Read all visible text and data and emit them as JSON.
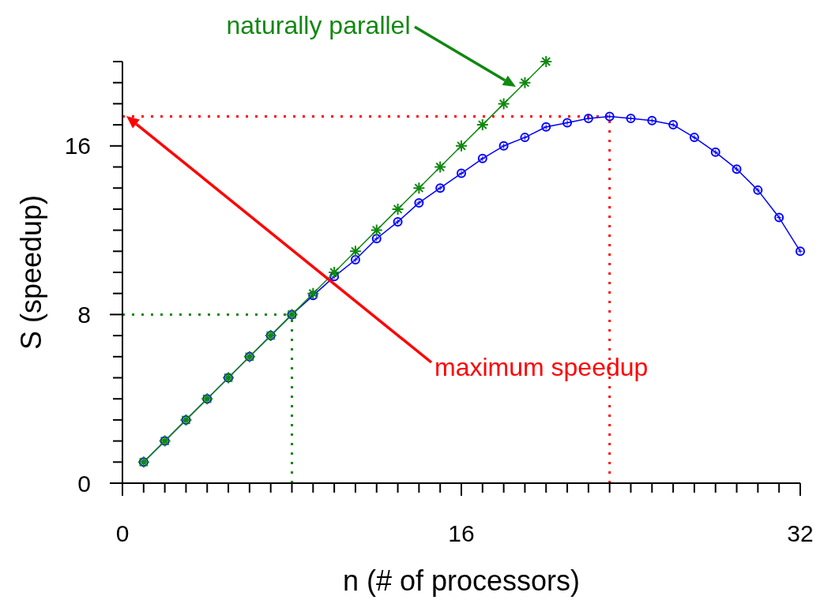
{
  "chart_data": {
    "type": "line",
    "xlabel": "n (# of processors)",
    "ylabel": "S (speedup)",
    "xlim": [
      0,
      32
    ],
    "ylim": [
      0,
      20
    ],
    "xticks": [
      0,
      {
        "value": 1,
        "label": null
      },
      {
        "value": 2,
        "label": null
      },
      {
        "value": 3,
        "label": null
      },
      {
        "value": 4,
        "label": null
      },
      {
        "value": 5,
        "label": null
      },
      {
        "value": 6,
        "label": null
      },
      {
        "value": 7,
        "label": null
      },
      {
        "value": 8,
        "label": null
      },
      {
        "value": 9,
        "label": null
      },
      {
        "value": 10,
        "label": null
      },
      {
        "value": 11,
        "label": null
      },
      {
        "value": 12,
        "label": null
      },
      {
        "value": 13,
        "label": null
      },
      {
        "value": 14,
        "label": null
      },
      {
        "value": 15,
        "label": null
      },
      16,
      {
        "value": 17,
        "label": null
      },
      {
        "value": 18,
        "label": null
      },
      {
        "value": 19,
        "label": null
      },
      {
        "value": 20,
        "label": null
      },
      {
        "value": 21,
        "label": null
      },
      {
        "value": 22,
        "label": null
      },
      {
        "value": 23,
        "label": null
      },
      {
        "value": 24,
        "label": null
      },
      {
        "value": 25,
        "label": null
      },
      {
        "value": 26,
        "label": null
      },
      {
        "value": 27,
        "label": null
      },
      {
        "value": 28,
        "label": null
      },
      {
        "value": 29,
        "label": null
      },
      {
        "value": 30,
        "label": null
      },
      {
        "value": 31,
        "label": null
      },
      32
    ],
    "yticks": [
      0,
      {
        "value": 1,
        "label": null
      },
      {
        "value": 2,
        "label": null
      },
      {
        "value": 3,
        "label": null
      },
      {
        "value": 4,
        "label": null
      },
      {
        "value": 5,
        "label": null
      },
      {
        "value": 6,
        "label": null
      },
      {
        "value": 7,
        "label": null
      },
      8,
      {
        "value": 9,
        "label": null
      },
      {
        "value": 10,
        "label": null
      },
      {
        "value": 11,
        "label": null
      },
      {
        "value": 12,
        "label": null
      },
      {
        "value": 13,
        "label": null
      },
      {
        "value": 14,
        "label": null
      },
      {
        "value": 15,
        "label": null
      },
      16,
      {
        "value": 17,
        "label": null
      },
      {
        "value": 18,
        "label": null
      },
      {
        "value": 19,
        "label": null
      },
      {
        "value": 20,
        "label": null
      }
    ],
    "grid": false,
    "series": [
      {
        "color": "#0000ff",
        "marker": "circle",
        "x": [
          1,
          2,
          3,
          4,
          5,
          6,
          7,
          8,
          9,
          10,
          11,
          12,
          13,
          14,
          15,
          16,
          17,
          18,
          19,
          20,
          21,
          22,
          23,
          24,
          25,
          26,
          27,
          28,
          29,
          30,
          31,
          32
        ],
        "values": [
          1,
          2,
          3,
          4,
          5,
          6,
          7,
          8,
          8.9,
          9.8,
          10.6,
          11.6,
          12.4,
          13.3,
          14,
          14.7,
          15.4,
          16,
          16.4,
          16.9,
          17.1,
          17.3,
          17.4,
          17.3,
          17.2,
          17,
          16.4,
          15.7,
          14.9,
          13.9,
          12.6,
          11
        ]
      },
      {
        "color": "#118811",
        "marker": "cross",
        "x": [
          1,
          2,
          3,
          4,
          5,
          6,
          7,
          8,
          9,
          10,
          11,
          12,
          13,
          14,
          15,
          16,
          17,
          18,
          19,
          20
        ],
        "values": [
          1,
          2,
          3,
          4,
          5,
          6,
          7,
          8,
          9,
          10,
          11,
          12,
          13,
          14,
          15,
          16,
          17,
          18,
          19,
          20
        ]
      }
    ],
    "ref_lines": [
      {
        "axis": "y",
        "value": 8,
        "color": "#118811",
        "line_style": "dotted"
      },
      {
        "axis": "x",
        "value": 8,
        "color": "#118811",
        "line_style": "dotted"
      },
      {
        "axis": "y",
        "value": 17.4,
        "color": "#ff0000",
        "line_style": "dotted"
      },
      {
        "axis": "x",
        "value": 23,
        "color": "#ff0000",
        "line_style": "dotted"
      }
    ],
    "annotations": [
      "naturally parallel",
      "maximum speedup"
    ]
  }
}
